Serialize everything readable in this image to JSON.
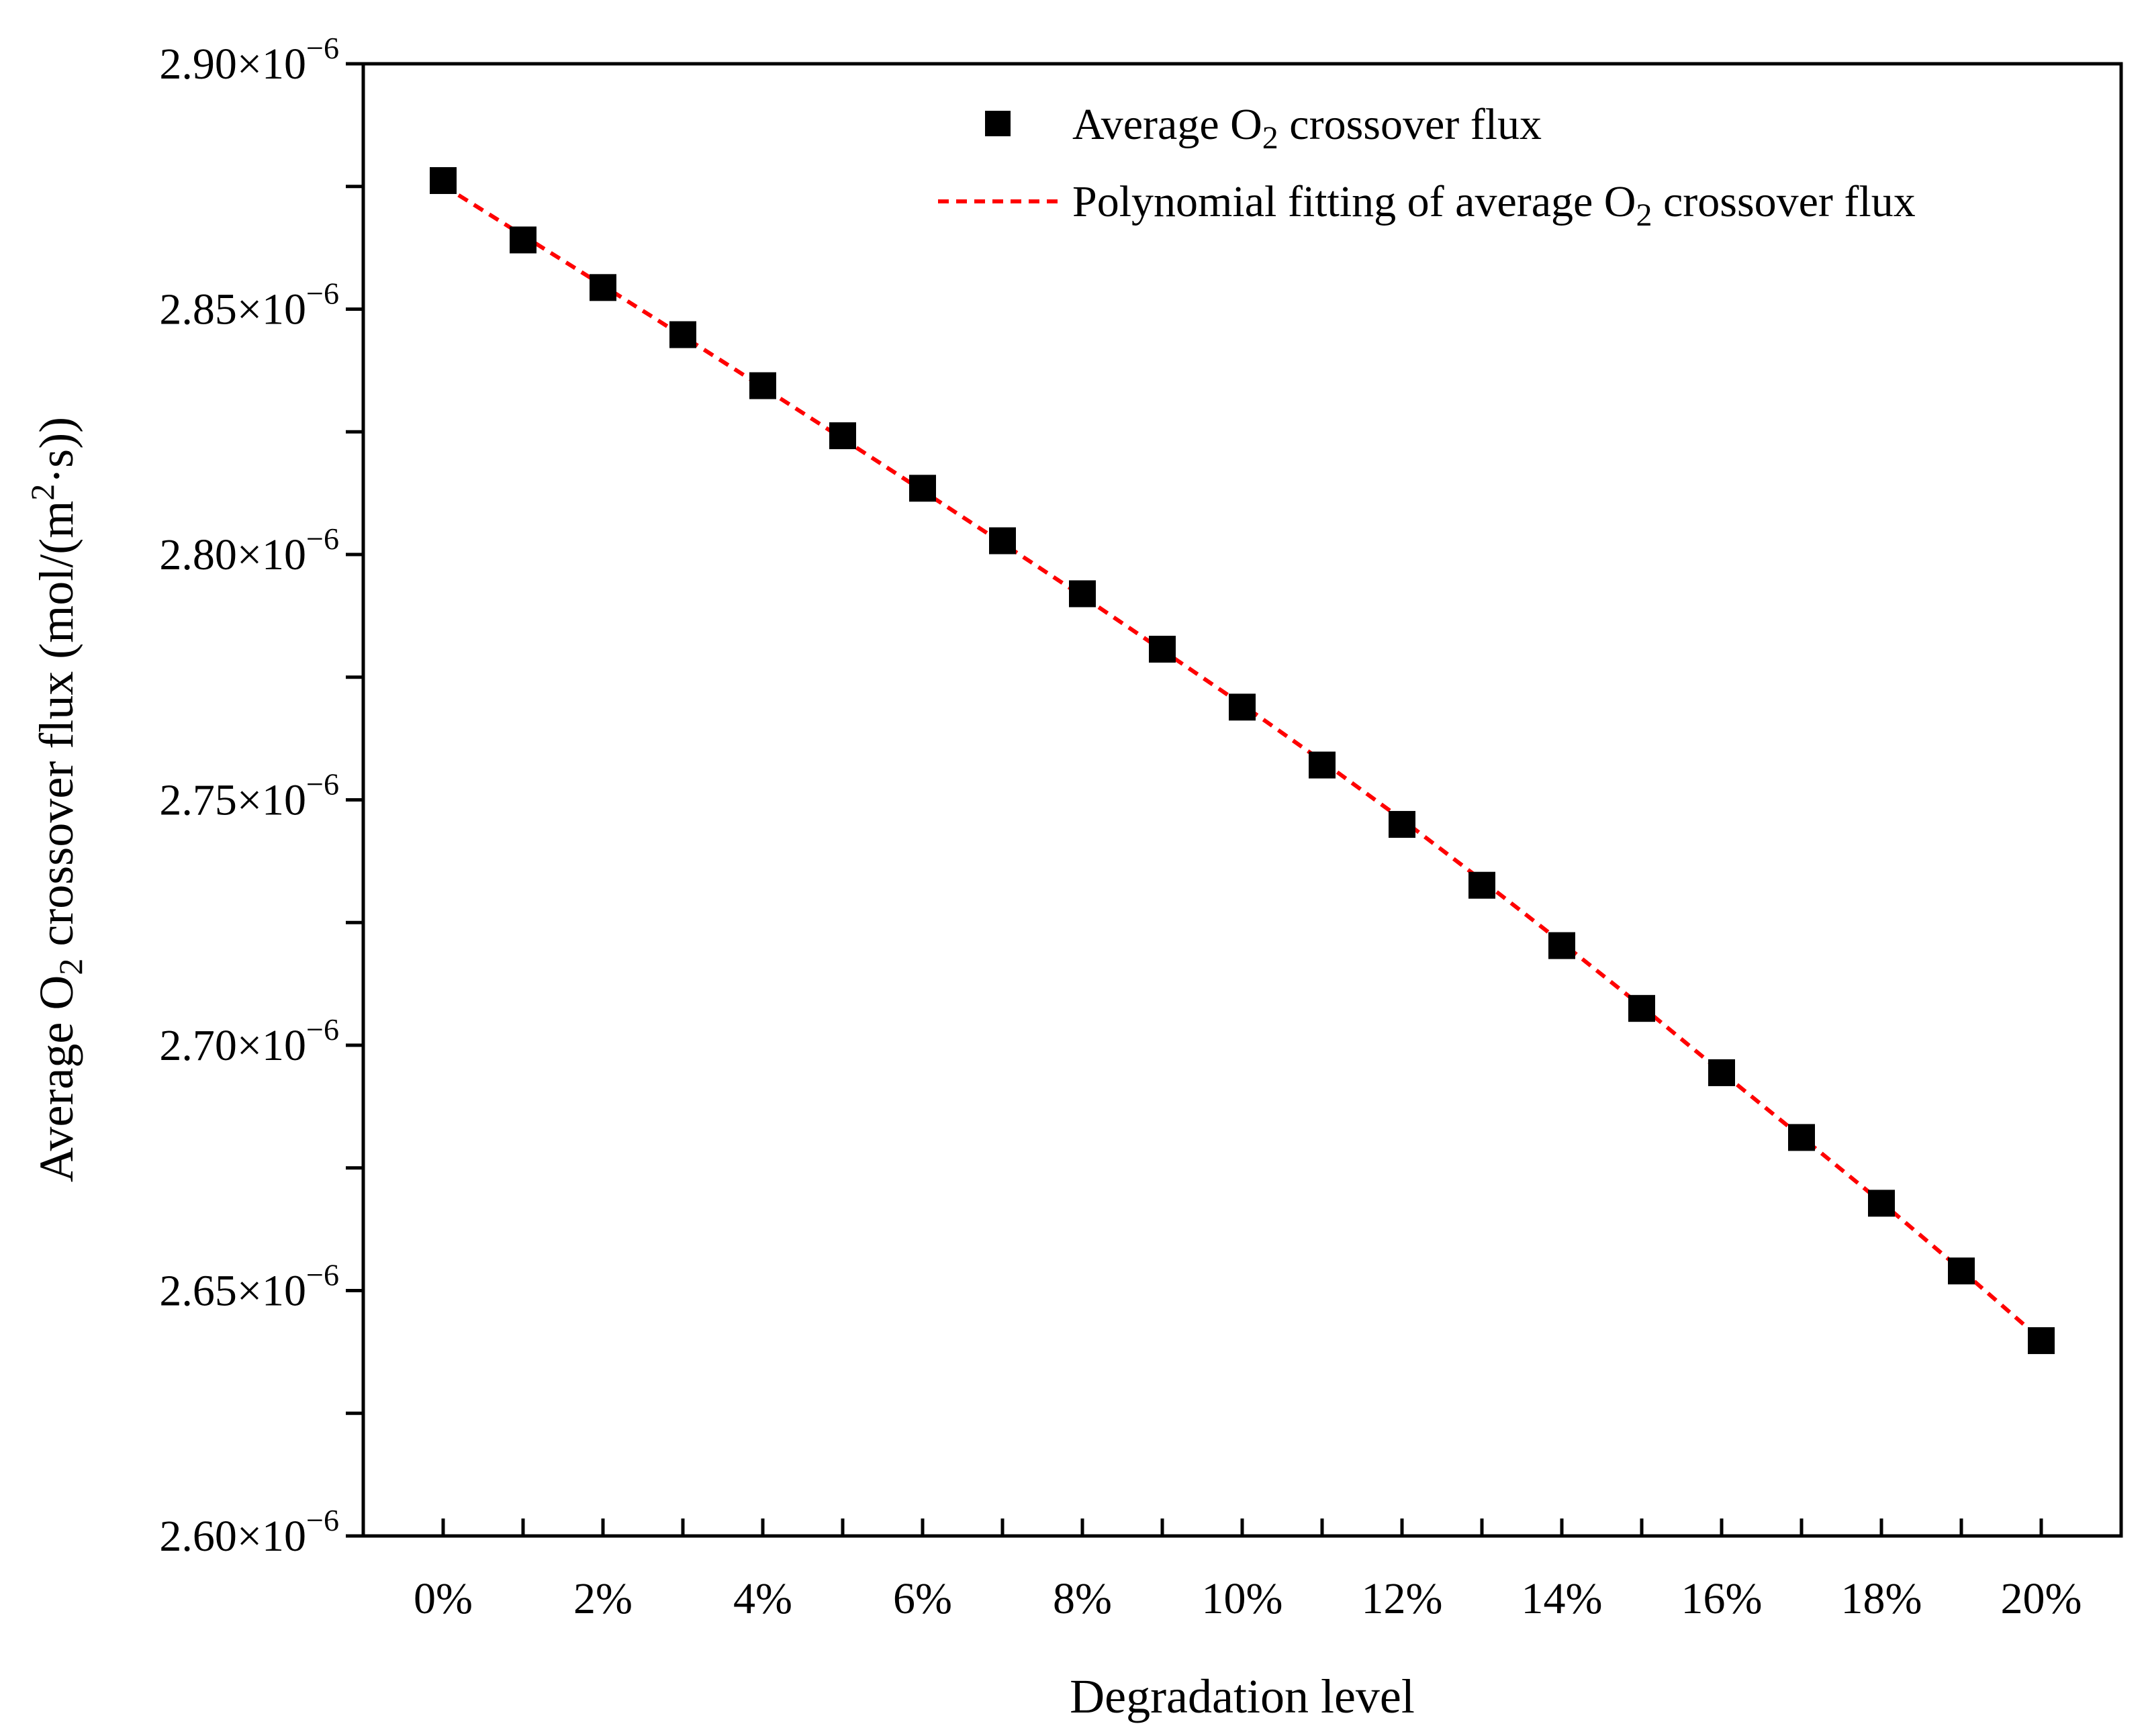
{
  "chart_data": {
    "type": "scatter",
    "title": "",
    "xlabel": "Degradation level",
    "ylabel_parts": [
      "Average O",
      "2",
      " crossover flux (mol/(m",
      "2",
      "·s))"
    ],
    "x": [
      0,
      1,
      2,
      3,
      4,
      5,
      6,
      7,
      8,
      9,
      10,
      11,
      12,
      13,
      14,
      15,
      16,
      17,
      18,
      19,
      20
    ],
    "x_tick_values": [
      0,
      2,
      4,
      6,
      8,
      10,
      12,
      14,
      16,
      18,
      20
    ],
    "x_tick_labels": [
      "0%",
      "2%",
      "4%",
      "6%",
      "8%",
      "10%",
      "12%",
      "14%",
      "16%",
      "18%",
      "20%"
    ],
    "xlim": [
      -1,
      21
    ],
    "ylim": [
      2.6e-06,
      2.9e-06
    ],
    "y_tick_values": [
      2.6e-06,
      2.65e-06,
      2.7e-06,
      2.75e-06,
      2.8e-06,
      2.85e-06,
      2.9e-06
    ],
    "y_tick_mantissas": [
      "2.60",
      "2.65",
      "2.70",
      "2.75",
      "2.80",
      "2.85",
      "2.90"
    ],
    "y_tick_times": "×10",
    "y_tick_exponent": "−6",
    "y_minor_tick_values": [
      2.625e-06,
      2.675e-06,
      2.725e-06,
      2.775e-06,
      2.825e-06,
      2.875e-06
    ],
    "series": [
      {
        "name_parts": [
          "Average O",
          "2",
          " crossover flux"
        ],
        "kind": "marker",
        "marker": "square",
        "color": "#000000",
        "values": [
          2.8762e-06,
          2.8641e-06,
          2.8544e-06,
          2.8448e-06,
          2.8344e-06,
          2.8242e-06,
          2.8135e-06,
          2.8028e-06,
          2.792e-06,
          2.7807e-06,
          2.7689e-06,
          2.7571e-06,
          2.745e-06,
          2.7326e-06,
          2.7203e-06,
          2.7075e-06,
          2.6944e-06,
          2.6812e-06,
          2.6678e-06,
          2.654e-06,
          2.6398e-06
        ]
      },
      {
        "name_parts": [
          "Polynomial fitting of average O",
          "2",
          " crossover flux"
        ],
        "kind": "line",
        "dash": "dashed",
        "color": "#ff0000",
        "values": [
          2.8752e-06,
          2.865e-06,
          2.8548e-06,
          2.8445e-06,
          2.8341e-06,
          2.8236e-06,
          2.813e-06,
          2.8023e-06,
          2.7915e-06,
          2.7805e-06,
          2.7694e-06,
          2.7579e-06,
          2.746e-06,
          2.7336e-06,
          2.7209e-06,
          2.7079e-06,
          2.6945e-06,
          2.6813e-06,
          2.668e-06,
          2.6542e-06,
          2.64e-06
        ]
      }
    ],
    "legend_position": "top-right",
    "grid": false
  }
}
